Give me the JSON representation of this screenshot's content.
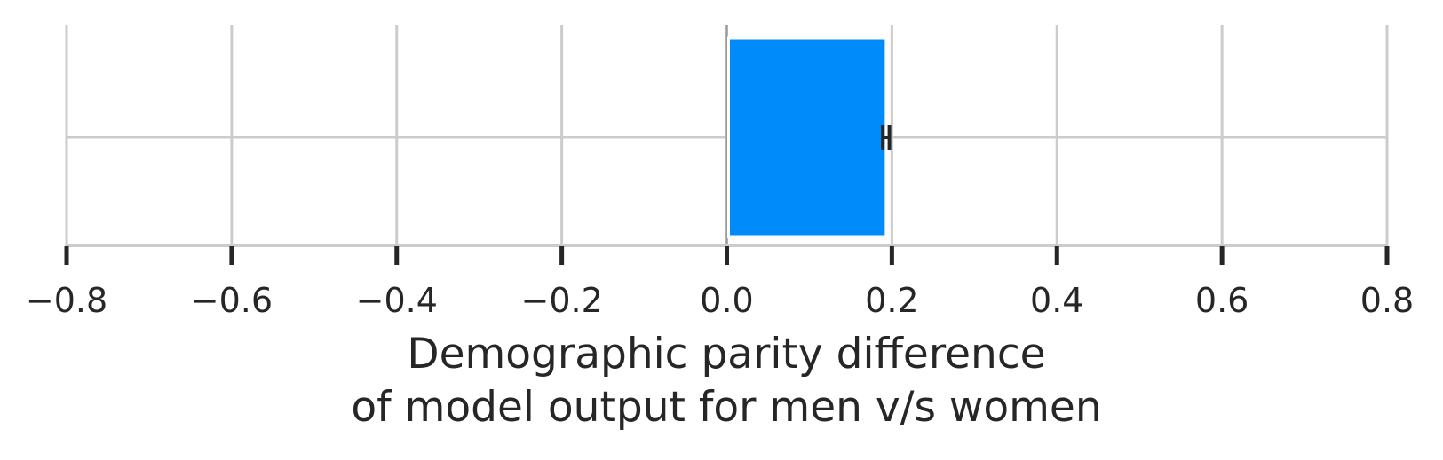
{
  "chart_data": {
    "type": "bar",
    "orientation": "horizontal",
    "categories": [
      ""
    ],
    "values": [
      0.193
    ],
    "error": [
      0.004
    ],
    "xlim": [
      -0.8,
      0.8
    ],
    "xticks": [
      -0.8,
      -0.6,
      -0.4,
      -0.2,
      0.0,
      0.2,
      0.4,
      0.6,
      0.8
    ],
    "xtick_labels": [
      "−0.8",
      "−0.6",
      "−0.4",
      "−0.2",
      "0.0",
      "0.2",
      "0.4",
      "0.6",
      "0.8"
    ],
    "xlabel_line1": "Demographic parity difference",
    "xlabel_line2": "of model output for men v/s women",
    "title": "",
    "grid": true,
    "bar_color": "#008bfb",
    "grid_color": "#cccccc",
    "text_color": "#262626"
  }
}
